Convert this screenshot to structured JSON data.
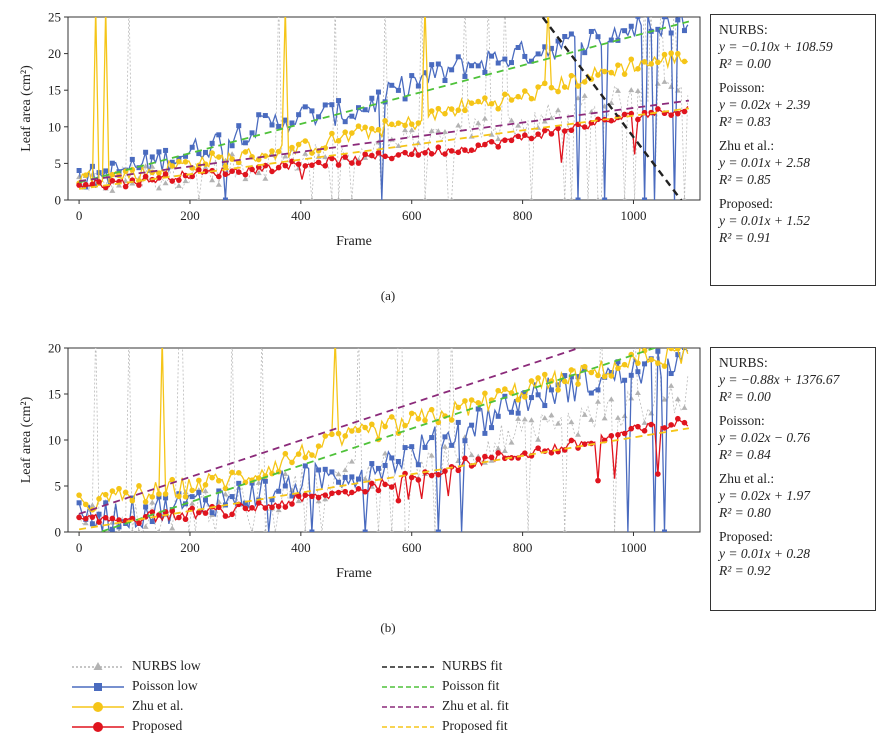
{
  "chart_data": [
    {
      "type": "line",
      "panel_label": "(a)",
      "xlabel": "Frame",
      "ylabel": "Leaf area (cm²)",
      "xlim": [
        -20,
        1120
      ],
      "ylim": [
        0,
        25
      ],
      "xticks": [
        "0",
        "200",
        "400",
        "600",
        "800",
        "1000"
      ],
      "xtick_values": [
        0,
        200,
        400,
        600,
        800,
        1000
      ],
      "yticks": [
        "0",
        "5",
        "10",
        "15",
        "20",
        "25"
      ],
      "ytick_values": [
        0,
        5,
        10,
        15,
        20,
        25
      ],
      "series": [
        {
          "name": "NURBS low",
          "x": [
            0,
            100,
            200,
            300,
            400,
            500,
            600,
            700,
            800,
            900,
            1000,
            1100
          ],
          "values": [
            2.5,
            3.0,
            3.5,
            4.5,
            5.5,
            6.5,
            8.0,
            9.5,
            10.5,
            12.0,
            14.5,
            16.0
          ]
        },
        {
          "name": "Poisson low",
          "x": [
            0,
            100,
            200,
            300,
            400,
            500,
            600,
            700,
            800,
            900,
            1000,
            1100
          ],
          "values": [
            2.5,
            4.5,
            6.5,
            9.5,
            11.5,
            12.0,
            16.0,
            18.5,
            20.0,
            21.5,
            23.5,
            24.5
          ]
        },
        {
          "name": "Zhu et al.",
          "x": [
            0,
            100,
            200,
            300,
            400,
            500,
            600,
            700,
            800,
            900,
            1000,
            1100
          ],
          "values": [
            3.0,
            3.5,
            5.0,
            6.0,
            7.0,
            9.0,
            10.5,
            13.0,
            14.0,
            16.5,
            18.5,
            19.5
          ]
        },
        {
          "name": "Proposed",
          "x": [
            0,
            100,
            200,
            300,
            400,
            500,
            600,
            700,
            800,
            900,
            1000,
            1100
          ],
          "values": [
            2.0,
            2.5,
            3.5,
            4.0,
            5.0,
            5.5,
            6.5,
            7.0,
            8.5,
            10.0,
            11.5,
            12.5
          ]
        },
        {
          "name": "NURBS fit",
          "slope": -0.1,
          "intercept": 108.59
        },
        {
          "name": "Poisson fit",
          "slope": 0.02,
          "intercept": 2.39
        },
        {
          "name": "Zhu et al. fit",
          "slope": 0.01,
          "intercept": 2.58
        },
        {
          "name": "Proposed fit",
          "slope": 0.01,
          "intercept": 1.52
        }
      ],
      "equations": [
        {
          "name": "NURBS:",
          "eq": "y = −0.10x + 108.59",
          "r2": "R² = 0.00"
        },
        {
          "name": "Poisson:",
          "eq": "y = 0.02x + 2.39",
          "r2": "R² = 0.83"
        },
        {
          "name": "Zhu et al.:",
          "eq": "y = 0.01x + 2.58",
          "r2": "R² = 0.85"
        },
        {
          "name": "Proposed:",
          "eq": "y = 0.01x + 1.52",
          "r2": "R² = 0.91"
        }
      ]
    },
    {
      "type": "line",
      "panel_label": "(b)",
      "xlabel": "Frame",
      "ylabel": "Leaf area (cm²)",
      "xlim": [
        -20,
        1120
      ],
      "ylim": [
        0,
        20
      ],
      "xticks": [
        "0",
        "200",
        "400",
        "600",
        "800",
        "1000"
      ],
      "xtick_values": [
        0,
        200,
        400,
        600,
        800,
        1000
      ],
      "yticks": [
        "0",
        "5",
        "10",
        "15",
        "20"
      ],
      "ytick_values": [
        0,
        5,
        10,
        15,
        20
      ],
      "series": [
        {
          "name": "NURBS low",
          "x": [
            0,
            100,
            200,
            300,
            400,
            500,
            600,
            700,
            800,
            900,
            1000,
            1100
          ],
          "values": [
            1.5,
            2.0,
            2.5,
            3.0,
            5.0,
            6.0,
            7.5,
            9.0,
            10.5,
            12.0,
            13.5,
            15.0
          ]
        },
        {
          "name": "Poisson low",
          "x": [
            0,
            100,
            200,
            300,
            400,
            500,
            600,
            700,
            800,
            900,
            1000,
            1100
          ],
          "values": [
            1.5,
            2.0,
            3.0,
            4.0,
            5.5,
            6.5,
            8.5,
            11.5,
            14.5,
            16.0,
            17.5,
            18.5
          ]
        },
        {
          "name": "Zhu et al.",
          "x": [
            0,
            100,
            200,
            300,
            400,
            500,
            600,
            700,
            800,
            900,
            1000,
            1100
          ],
          "values": [
            3.0,
            4.0,
            5.0,
            6.0,
            8.5,
            10.5,
            12.0,
            13.5,
            15.5,
            17.0,
            18.5,
            19.5
          ]
        },
        {
          "name": "Proposed",
          "x": [
            0,
            100,
            200,
            300,
            400,
            500,
            600,
            700,
            800,
            900,
            1000,
            1100
          ],
          "values": [
            1.2,
            1.5,
            2.0,
            2.5,
            3.5,
            4.5,
            6.0,
            7.5,
            8.5,
            9.5,
            11.0,
            12.0
          ]
        },
        {
          "name": "NURBS fit",
          "slope": -0.88,
          "intercept": 1376.67
        },
        {
          "name": "Poisson fit",
          "slope": 0.02,
          "intercept": -0.76
        },
        {
          "name": "Zhu et al. fit",
          "slope": 0.02,
          "intercept": 1.97
        },
        {
          "name": "Proposed fit",
          "slope": 0.01,
          "intercept": 0.28
        }
      ],
      "equations": [
        {
          "name": "NURBS:",
          "eq": "y = −0.88x + 1376.67",
          "r2": "R² = 0.00"
        },
        {
          "name": "Poisson:",
          "eq": "y = 0.02x − 0.76",
          "r2": "R² = 0.84"
        },
        {
          "name": "Zhu et al.:",
          "eq": "y = 0.02x + 1.97",
          "r2": "R² = 0.80"
        },
        {
          "name": "Proposed:",
          "eq": "y = 0.01x + 0.28",
          "r2": "R² = 0.92"
        }
      ]
    }
  ],
  "legend": {
    "items": [
      {
        "label": "NURBS low",
        "color": "#b3b3b3",
        "marker": "triangle",
        "dash": "dotted"
      },
      {
        "label": "Poisson low",
        "color": "#4a6bbf",
        "marker": "square",
        "dash": "solid"
      },
      {
        "label": "Zhu et al.",
        "color": "#f5c518",
        "marker": "circle",
        "dash": "solid"
      },
      {
        "label": "Proposed",
        "color": "#e0141e",
        "marker": "circle",
        "dash": "solid"
      },
      {
        "label": "NURBS fit",
        "color": "#222222",
        "marker": "none",
        "dash": "dashed"
      },
      {
        "label": "Poisson fit",
        "color": "#4fc23a",
        "marker": "none",
        "dash": "dashed"
      },
      {
        "label": "Zhu et al. fit",
        "color": "#8b2a7a",
        "marker": "none",
        "dash": "dashed"
      },
      {
        "label": "Proposed fit",
        "color": "#f5c518",
        "marker": "none",
        "dash": "dashed"
      }
    ]
  }
}
